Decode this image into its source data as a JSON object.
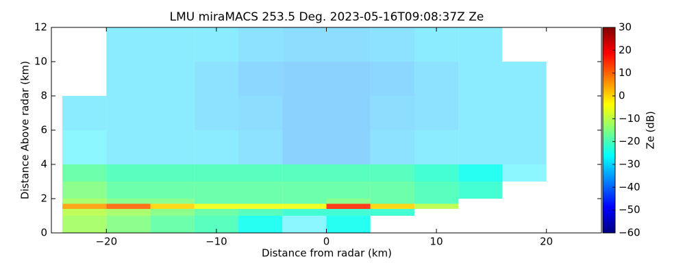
{
  "chart_data": {
    "type": "heatmap",
    "title": "LMU miraMACS 253.5 Deg. 2023-05-16T09:08:37Z  Ze",
    "xlabel": "Distance from radar (km)",
    "ylabel": "Distance Above radar  (km)",
    "xlim": [
      -25,
      25
    ],
    "xticks": [
      {
        "value": -20,
        "label": "−20"
      },
      {
        "value": -10,
        "label": "−10"
      },
      0,
      10,
      20
    ],
    "ylim": [
      0,
      12
    ],
    "yticks": [
      0,
      2,
      4,
      6,
      8,
      10,
      12
    ],
    "x_edges": [
      -24,
      -20,
      -16,
      -12,
      -8,
      -4,
      0,
      4,
      8,
      12,
      16,
      20,
      24
    ],
    "y_edges": [
      0,
      1,
      1.4,
      1.7,
      2,
      3,
      4,
      6,
      8,
      10,
      12
    ],
    "z": [
      [
        -12,
        -15,
        -18,
        -20,
        -25,
        -28,
        -25,
        null,
        null,
        null,
        null,
        null
      ],
      [
        -10,
        -12,
        -15,
        -18,
        -20,
        -22,
        -22,
        -22,
        null,
        null,
        null,
        null
      ],
      [
        5,
        10,
        0,
        -5,
        -5,
        -5,
        15,
        0,
        -10,
        null,
        null,
        null
      ],
      [
        -12,
        -15,
        -15,
        -18,
        -18,
        -18,
        -15,
        -18,
        -20,
        null,
        null,
        null
      ],
      [
        -15,
        -18,
        -18,
        -18,
        -18,
        -18,
        -18,
        -18,
        -20,
        -22,
        null,
        null
      ],
      [
        -18,
        -20,
        -20,
        -20,
        -20,
        -20,
        -20,
        -20,
        -22,
        -25,
        -28,
        null
      ],
      [
        -28,
        -30,
        -30,
        -30,
        -32,
        -35,
        -35,
        -32,
        -30,
        -30,
        -30,
        null
      ],
      [
        -30,
        -30,
        -30,
        -32,
        -33,
        -35,
        -35,
        -33,
        -32,
        -30,
        -30,
        null
      ],
      [
        null,
        -30,
        -30,
        -32,
        -34,
        -35,
        -35,
        -34,
        -32,
        -30,
        -30,
        null
      ],
      [
        null,
        -30,
        -30,
        -30,
        -32,
        -33,
        -33,
        -32,
        -30,
        -30,
        null,
        null
      ]
    ],
    "colormap": "jet",
    "clim": [
      -60,
      30
    ],
    "cticks": [
      {
        "value": -60,
        "label": "−60"
      },
      {
        "value": -50,
        "label": "−50"
      },
      {
        "value": -40,
        "label": "−40"
      },
      {
        "value": -30,
        "label": "−30"
      },
      {
        "value": -20,
        "label": "−20"
      },
      {
        "value": -10,
        "label": "−10"
      },
      0,
      10,
      20,
      30
    ],
    "colorbar_label": "Ze (dB)"
  }
}
